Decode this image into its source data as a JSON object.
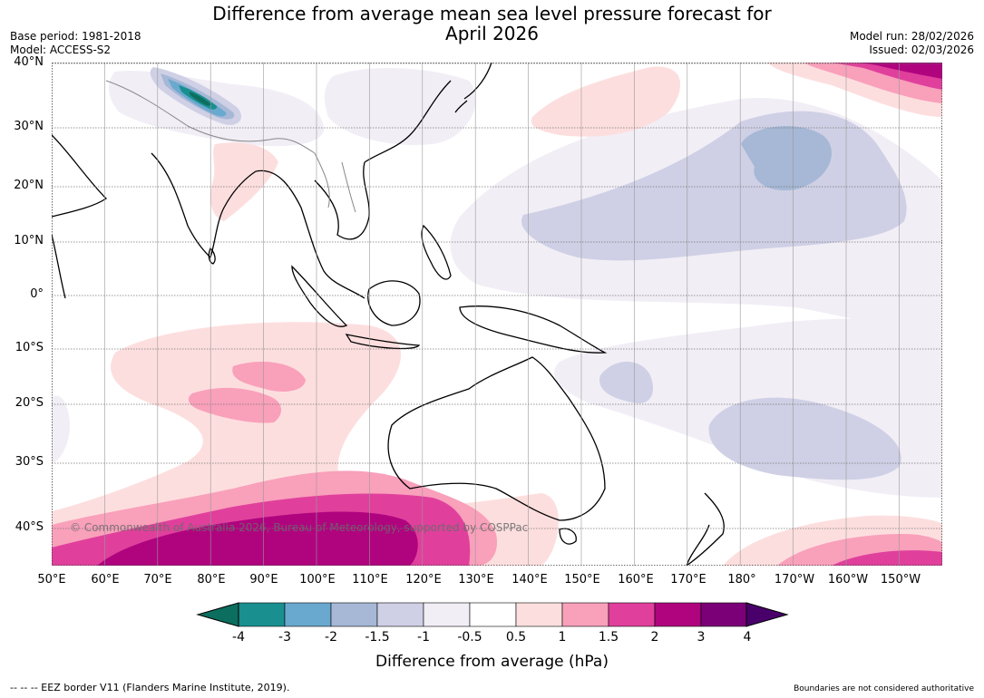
{
  "title": "Difference from average mean sea level pressure forecast for April 2026",
  "title_lines": [
    "Difference from average mean sea level pressure forecast for",
    "April 2026"
  ],
  "meta": {
    "base_period": "Base period: 1981-2018",
    "model": "Model: ACCESS-S2",
    "model_run": "Model run: 28/02/2026",
    "issued": "Issued: 02/03/2026"
  },
  "axes": {
    "lat_labels": [
      "40°N",
      "30°N",
      "20°N",
      "10°N",
      "0°",
      "10°S",
      "20°S",
      "30°S",
      "40°S"
    ],
    "lon_labels": [
      "50°E",
      "60°E",
      "70°E",
      "80°E",
      "90°E",
      "100°E",
      "110°E",
      "120°E",
      "130°E",
      "140°E",
      "150°E",
      "160°E",
      "170°E",
      "180°",
      "170°W",
      "160°W",
      "150°W"
    ]
  },
  "watermark": "© Commonwealth of Australia 2026, Bureau of Meteorology, supported by COSPPac",
  "colorbar": {
    "ticks": [
      "-4",
      "-3",
      "-2",
      "-1.5",
      "-1",
      "-0.5",
      "0.5",
      "1",
      "1.5",
      "2",
      "3",
      "4"
    ],
    "label": "Difference from average (hPa)",
    "colors": [
      "#1a8f8f",
      "#6aa9cf",
      "#a6b8d6",
      "#cfd0e5",
      "#f2eef6",
      "#ffffff",
      "#fddede",
      "#f9a0bb",
      "#e0409c",
      "#b0047f",
      "#7b0077"
    ],
    "under_color": "#0c6e5e",
    "over_color": "#4a006b"
  },
  "footer": {
    "left": "--  --  -- EEZ border V11 (Flanders Marine Institute, 2019).",
    "right": "Boundaries are not considered authoritative"
  }
}
